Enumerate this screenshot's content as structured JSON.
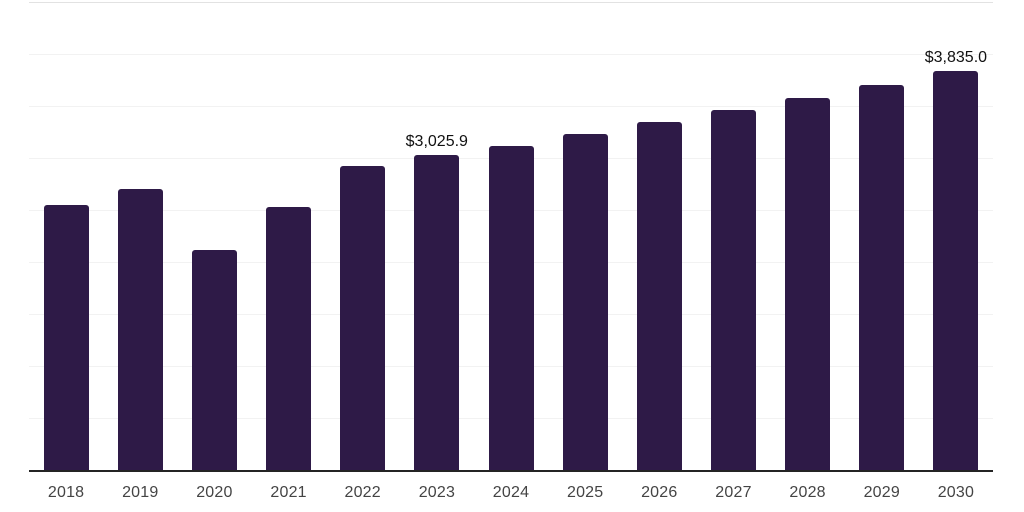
{
  "chart_data": {
    "type": "bar",
    "title": "",
    "xlabel": "",
    "ylabel": "",
    "categories": [
      "2018",
      "2019",
      "2020",
      "2021",
      "2022",
      "2023",
      "2024",
      "2025",
      "2026",
      "2027",
      "2028",
      "2029",
      "2030"
    ],
    "values": [
      2550,
      2700,
      2120,
      2530,
      2925,
      3025.9,
      3120,
      3230,
      3345,
      3460,
      3580,
      3700,
      3835
    ],
    "data_labels": [
      {
        "index": 5,
        "text": "$3,025.9"
      },
      {
        "index": 12,
        "text": "$3,835.0"
      }
    ],
    "ylim": [
      0,
      4500
    ],
    "grid_step": 500,
    "grid": "horizontal light gridlines, y-axis unlabeled",
    "legend": "none"
  },
  "colors": {
    "background": "#ffffff",
    "bar": "#2e1a47",
    "gridline": "#f2f2f2",
    "plot_top_border": "#e2e2e2",
    "axis_line": "#242424",
    "tick_label": "#444444",
    "data_label": "#111111"
  }
}
